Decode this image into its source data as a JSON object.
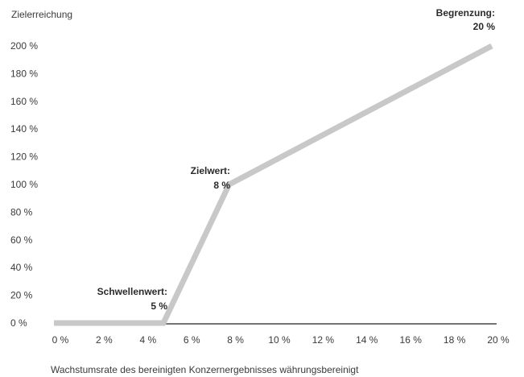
{
  "chart_data": {
    "type": "line",
    "title": "",
    "ylabel": "Zielerreichung",
    "xlabel": "Wachstumsrate des bereinigten Konzernergebnisses währungsbereinigt",
    "x_tick_labels": [
      "0 %",
      "2 %",
      "4 %",
      "6 %",
      "8 %",
      "10 %",
      "12 %",
      "14 %",
      "16 %",
      "18 %",
      "20 %"
    ],
    "y_tick_labels": [
      "0 %",
      "20 %",
      "40 %",
      "60 %",
      "80 %",
      "100 %",
      "120 %",
      "140 %",
      "160 %",
      "180 %",
      "200 %"
    ],
    "ylim": [
      0,
      200
    ],
    "series": [
      {
        "points": [
          {
            "x": "0 %",
            "y": 0
          },
          {
            "x": "5 %",
            "y": 0
          },
          {
            "x": "8 %",
            "y": 100
          },
          {
            "x": "20 %",
            "y": 200
          }
        ],
        "color": "#c8c8c8"
      }
    ],
    "annotations": [
      {
        "label": "Schwellenwert:",
        "value": "5 %"
      },
      {
        "label": "Zielwert:",
        "value": "8 %"
      },
      {
        "label": "Begrenzung:",
        "value": "20 %"
      }
    ],
    "axis_color": "#222222",
    "grid": false
  }
}
